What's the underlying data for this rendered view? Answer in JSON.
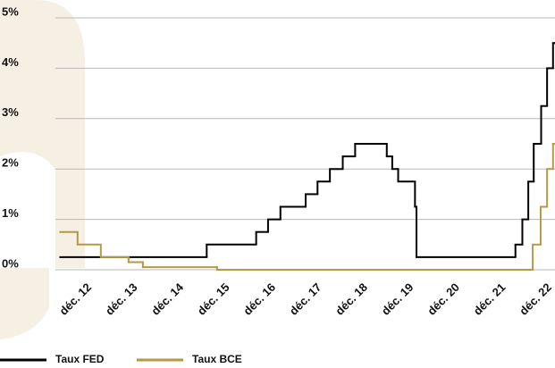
{
  "chart_data": {
    "type": "step",
    "xlim": [
      2012.92,
      2023.0
    ],
    "xticks": [
      {
        "value": 2012.92,
        "label": "déc. 12"
      },
      {
        "value": 2013.92,
        "label": "déc. 13"
      },
      {
        "value": 2014.92,
        "label": "déc. 14"
      },
      {
        "value": 2015.92,
        "label": "déc. 15"
      },
      {
        "value": 2016.92,
        "label": "déc. 16"
      },
      {
        "value": 2017.92,
        "label": "déc. 17"
      },
      {
        "value": 2018.92,
        "label": "déc. 18"
      },
      {
        "value": 2019.92,
        "label": "déc. 19"
      },
      {
        "value": 2020.92,
        "label": "déc. 20"
      },
      {
        "value": 2021.92,
        "label": "déc. 21"
      },
      {
        "value": 2022.92,
        "label": "déc. 22"
      }
    ],
    "ylim": [
      0,
      5
    ],
    "yticks": [
      {
        "value": 0,
        "label": "0%"
      },
      {
        "value": 1,
        "label": "1%"
      },
      {
        "value": 2,
        "label": "2%"
      },
      {
        "value": 3,
        "label": "3%"
      },
      {
        "value": 4,
        "label": "4%"
      },
      {
        "value": 5,
        "label": "5%"
      }
    ],
    "grid": true,
    "legend": "bottom-left",
    "series": [
      {
        "name": "Taux FED",
        "color": "#000000",
        "x": [
          2013.0,
          2015.96,
          2016.96,
          2017.2,
          2017.45,
          2017.96,
          2018.2,
          2018.45,
          2018.71,
          2018.96,
          2019.6,
          2019.71,
          2019.83,
          2020.17,
          2020.2,
          2022.2,
          2022.34,
          2022.46,
          2022.57,
          2022.72,
          2022.84,
          2022.96,
          2023.0
        ],
        "values": [
          0.25,
          0.5,
          0.75,
          1.0,
          1.25,
          1.5,
          1.75,
          2.0,
          2.25,
          2.5,
          2.25,
          2.0,
          1.75,
          1.25,
          0.25,
          0.5,
          1.0,
          1.75,
          2.5,
          3.25,
          4.0,
          4.5,
          4.5
        ]
      },
      {
        "name": "Taux BCE",
        "color": "#b39a45",
        "x": [
          2013.0,
          2013.35,
          2013.82,
          2014.38,
          2014.67,
          2016.17,
          2022.55,
          2022.71,
          2022.84,
          2022.96,
          2023.0
        ],
        "values": [
          0.75,
          0.5,
          0.25,
          0.15,
          0.05,
          0,
          0.5,
          1.25,
          2.0,
          2.5,
          2.5
        ]
      }
    ]
  }
}
